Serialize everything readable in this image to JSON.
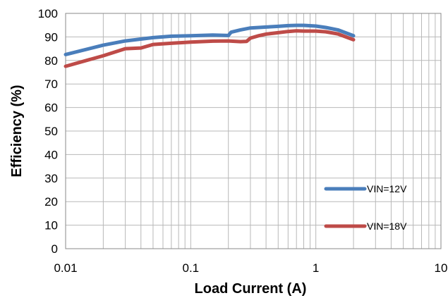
{
  "chart_data": {
    "type": "line",
    "title": "",
    "xlabel": "Load Current (A)",
    "ylabel": "Efficiency (%)",
    "x_scale": "log",
    "xlim": [
      0.01,
      10
    ],
    "ylim": [
      0,
      100
    ],
    "x_ticks": [
      0.01,
      0.1,
      1,
      10
    ],
    "x_tick_labels": [
      "0.01",
      "0.1",
      "1",
      "10"
    ],
    "y_ticks": [
      0,
      10,
      20,
      30,
      40,
      50,
      60,
      70,
      80,
      90,
      100
    ],
    "y_tick_labels": [
      "0",
      "10",
      "20",
      "30",
      "40",
      "50",
      "60",
      "70",
      "80",
      "90",
      "100"
    ],
    "grid": true,
    "legend_position": "lower-right",
    "series": [
      {
        "name": "VIN=12V",
        "color": "#4a7ebb",
        "x": [
          0.01,
          0.02,
          0.03,
          0.05,
          0.07,
          0.1,
          0.15,
          0.2,
          0.21,
          0.25,
          0.3,
          0.4,
          0.5,
          0.6,
          0.7,
          0.8,
          1.0,
          1.2,
          1.5,
          2.0
        ],
        "y": [
          82.5,
          86.5,
          88.3,
          89.7,
          90.3,
          90.5,
          90.8,
          90.6,
          92.0,
          93.0,
          93.8,
          94.2,
          94.5,
          94.8,
          94.9,
          94.9,
          94.6,
          94.0,
          93.0,
          90.5
        ]
      },
      {
        "name": "VIN=18V",
        "color": "#be4b48",
        "x": [
          0.01,
          0.02,
          0.03,
          0.04,
          0.05,
          0.07,
          0.1,
          0.15,
          0.2,
          0.25,
          0.28,
          0.3,
          0.35,
          0.4,
          0.5,
          0.6,
          0.7,
          0.8,
          1.0,
          1.2,
          1.5,
          2.0
        ],
        "y": [
          77.5,
          82.0,
          85.0,
          85.3,
          86.8,
          87.3,
          87.8,
          88.2,
          88.3,
          88.0,
          88.1,
          89.5,
          90.5,
          91.2,
          91.8,
          92.3,
          92.6,
          92.5,
          92.5,
          92.2,
          91.3,
          88.8
        ]
      }
    ]
  }
}
